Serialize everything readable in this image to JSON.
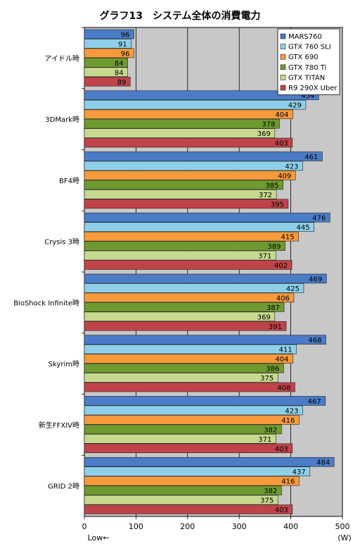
{
  "chart_data": {
    "type": "bar",
    "orientation": "horizontal",
    "title": "グラフ13　システム全体の消費電力",
    "unit_label": "(W)",
    "direction_note": "Low←",
    "categories": [
      "アイドル時",
      "3DMark時",
      "BF4時",
      "Crysis 3時",
      "BioShock Infinite時",
      "Skyrim時",
      "新生FFXIV時",
      "GRID 2時"
    ],
    "series": [
      {
        "name": "MARS760",
        "color": "#4a7cc7",
        "values": [
          96,
          454,
          461,
          476,
          469,
          468,
          467,
          484
        ]
      },
      {
        "name": "GTX 760 SLI",
        "color": "#8ed0ea",
        "values": [
          91,
          429,
          423,
          445,
          425,
          411,
          423,
          437
        ]
      },
      {
        "name": "GTX 690",
        "color": "#f79a3c",
        "values": [
          96,
          404,
          409,
          415,
          406,
          404,
          416,
          416
        ]
      },
      {
        "name": "GTX 780 Ti",
        "color": "#6f9a30",
        "values": [
          84,
          378,
          385,
          389,
          387,
          386,
          382,
          382
        ]
      },
      {
        "name": "GTX TITAN",
        "color": "#c6d98e",
        "values": [
          84,
          369,
          372,
          371,
          369,
          375,
          371,
          375
        ]
      },
      {
        "name": "R9 290X Uber",
        "color": "#c0434a",
        "values": [
          89,
          403,
          395,
          402,
          391,
          408,
          403,
          403
        ]
      }
    ],
    "xlim": [
      0,
      500
    ],
    "xticks": [
      0,
      100,
      200,
      300,
      400,
      500
    ],
    "grid": true,
    "legend_position": "top-right"
  }
}
